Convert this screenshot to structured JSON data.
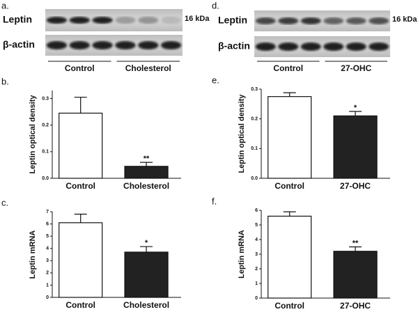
{
  "blots": [
    {
      "panel": "a.",
      "rows": [
        {
          "label": "Leptin",
          "size": "16 kDa"
        },
        {
          "label": "β-actin"
        }
      ],
      "groups": [
        "Control",
        "Cholesterol"
      ]
    },
    {
      "panel": "d.",
      "rows": [
        {
          "label": "Leptin",
          "size": "16 kDa"
        },
        {
          "label": "β-actin"
        }
      ],
      "groups": [
        "Control",
        "27-OHC"
      ]
    }
  ],
  "chart_data": [
    {
      "type": "bar",
      "panel": "b.",
      "ylabel": "Leptin  optical density",
      "categories": [
        "Control",
        "Cholesterol"
      ],
      "values": [
        0.245,
        0.045
      ],
      "errors": [
        0.06,
        0.015
      ],
      "annotations": [
        null,
        "**"
      ],
      "colors": [
        "#ffffff",
        "#222222"
      ],
      "ylim": [
        0,
        0.33
      ],
      "yticks": [
        {
          "value": 0,
          "label": "0.0"
        },
        {
          "value": 0.1,
          "label": "0.1"
        },
        {
          "value": 0.2,
          "label": "0.2"
        },
        {
          "value": 0.3,
          "label": "0.3"
        }
      ]
    },
    {
      "type": "bar",
      "panel": "c.",
      "ylabel": "Leptin mRNA",
      "categories": [
        "Control",
        "Cholesterol"
      ],
      "values": [
        6.1,
        3.7
      ],
      "errors": [
        0.7,
        0.45
      ],
      "annotations": [
        null,
        "*"
      ],
      "colors": [
        "#ffffff",
        "#222222"
      ],
      "ylim": [
        0,
        7
      ],
      "yticks": [
        0,
        1,
        2,
        3,
        4,
        5,
        6,
        7
      ]
    },
    {
      "type": "bar",
      "panel": "e.",
      "ylabel": "Leptin  optical density",
      "categories": [
        "Control",
        "27-OHC"
      ],
      "values": [
        0.275,
        0.21
      ],
      "errors": [
        0.013,
        0.015
      ],
      "annotations": [
        null,
        "*"
      ],
      "colors": [
        "#ffffff",
        "#222222"
      ],
      "ylim": [
        0,
        0.3
      ],
      "yticks": [
        {
          "value": 0,
          "label": "0.0"
        },
        {
          "value": 0.1,
          "label": "0.1"
        },
        {
          "value": 0.2,
          "label": "0.2"
        },
        {
          "value": 0.3,
          "label": "0.3"
        }
      ]
    },
    {
      "type": "bar",
      "panel": "f.",
      "ylabel": "Leptin mRNA",
      "categories": [
        "Control",
        "27-OHC"
      ],
      "values": [
        5.6,
        3.2
      ],
      "errors": [
        0.3,
        0.3
      ],
      "annotations": [
        null,
        "**"
      ],
      "colors": [
        "#ffffff",
        "#222222"
      ],
      "ylim": [
        0,
        6
      ],
      "yticks": [
        0,
        1,
        2,
        3,
        4,
        5,
        6
      ]
    }
  ]
}
